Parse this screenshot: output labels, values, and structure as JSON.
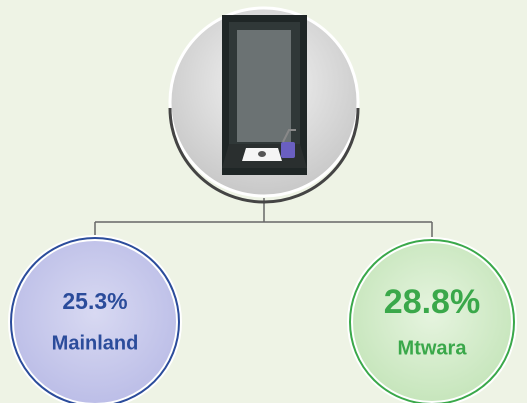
{
  "nodes": [
    {
      "value": "25.3%",
      "label": "Mainland"
    },
    {
      "value": "28.8%",
      "label": "Mtwara"
    }
  ]
}
